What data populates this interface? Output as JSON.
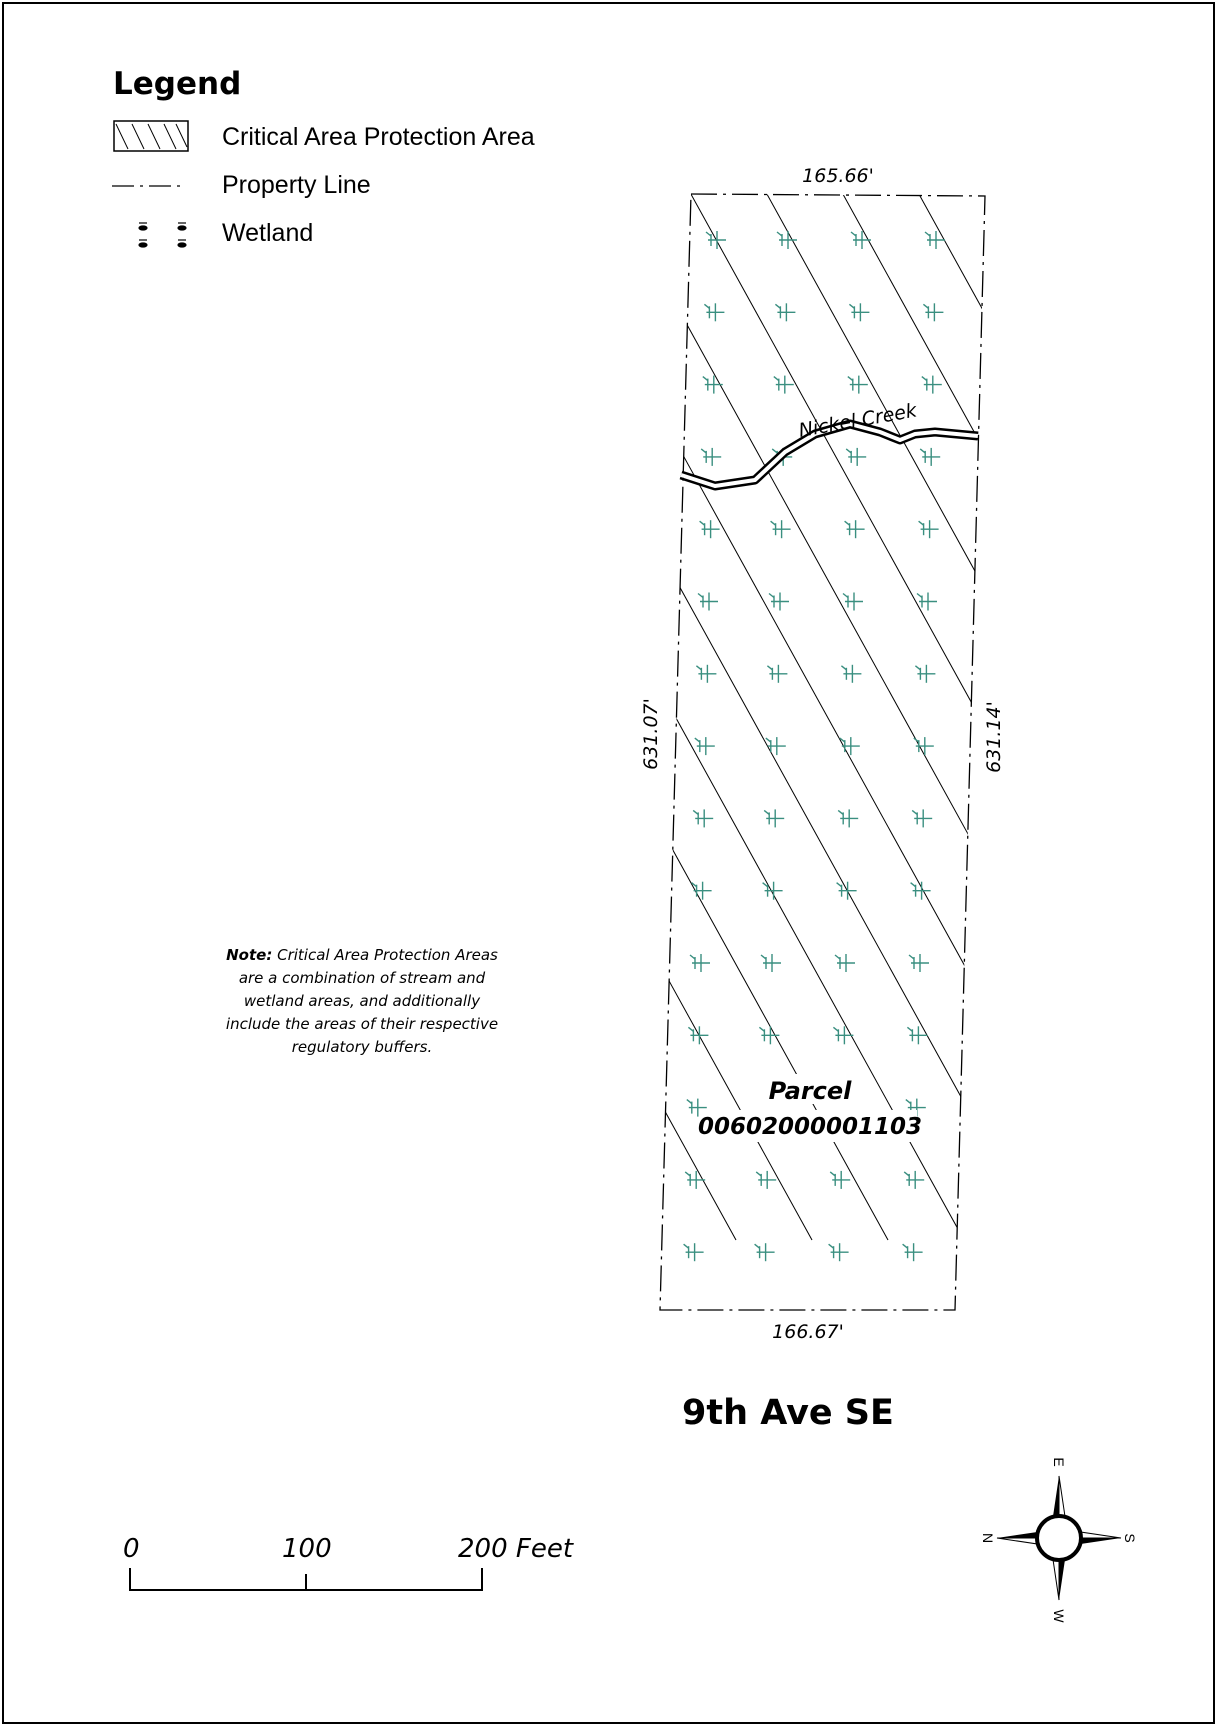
{
  "legend": {
    "title": "Legend",
    "items": [
      {
        "label": "Critical Area Protection Area",
        "icon": "hatch-swatch-icon"
      },
      {
        "label": "Property Line",
        "icon": "dash-dot-line-icon"
      },
      {
        "label": "Wetland",
        "icon": "wetland-symbol-icon"
      }
    ]
  },
  "parcel": {
    "label_line1": "Parcel",
    "label_line2": "00602000001103",
    "dim_top": "165.66'",
    "dim_bottom": "166.67'",
    "dim_left": "631.07'",
    "dim_right": "631.14'"
  },
  "creek": {
    "label": "Nickel Creek"
  },
  "note": {
    "line1_bold": "Note:",
    "line1_rest": " Critical Area Protection Areas",
    "line2": "are a combination of stream and",
    "line3": "wetland areas, and additionally",
    "line4": "include the areas of their respective",
    "line5": "regulatory buffers."
  },
  "street": {
    "label": "9th Ave SE"
  },
  "scale_bar": {
    "labels": [
      "0",
      "100",
      "200 Feet"
    ],
    "units": "Feet",
    "ticks": [
      0,
      100,
      200
    ]
  },
  "north_arrow": {
    "icon": "compass-rose-icon",
    "labels": {
      "up": "E",
      "left": "N",
      "right": "S",
      "down": "W"
    }
  },
  "colors": {
    "ink": "#000000",
    "wetland_symbol": "#3a8f80",
    "paper": "#ffffff"
  }
}
